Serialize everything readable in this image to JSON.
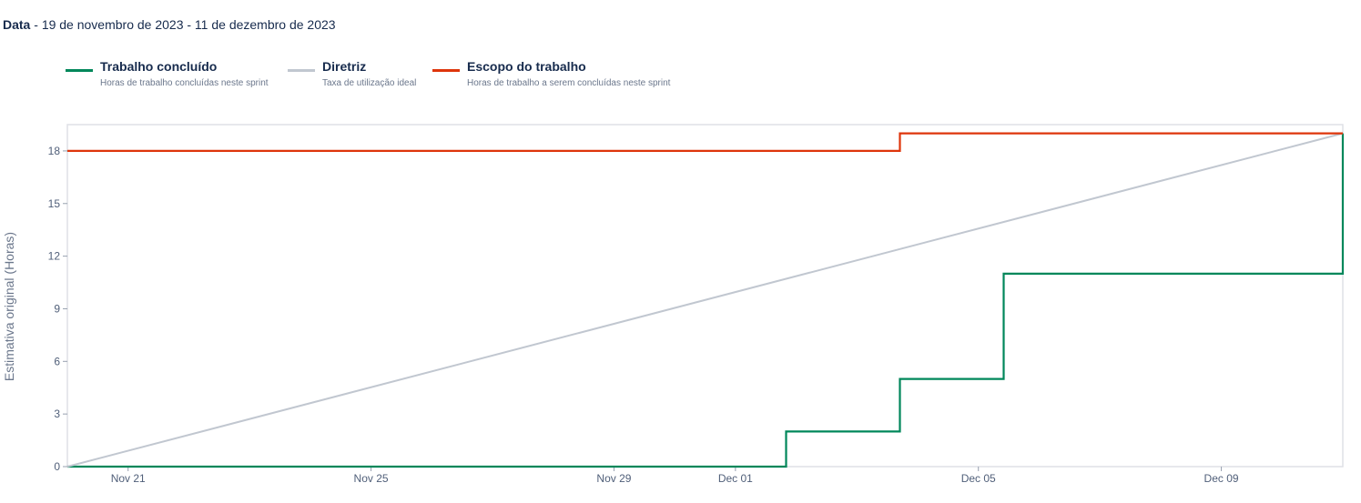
{
  "header": {
    "date_label": "Data",
    "date_range": "19 de novembro de 2023 - 11 de dezembro de 2023"
  },
  "legend": [
    {
      "title": "Trabalho concluído",
      "description": "Horas de trabalho concluídas neste sprint",
      "color": "#00875a"
    },
    {
      "title": "Diretriz",
      "description": "Taxa de utilização ideal",
      "color": "#c1c7d0"
    },
    {
      "title": "Escopo do trabalho",
      "description": "Horas de trabalho a serem concluídas neste sprint",
      "color": "#de350b"
    }
  ],
  "chart_data": {
    "type": "line",
    "title": "",
    "xlabel": "",
    "ylabel": "Estimativa original (Horas)",
    "xlim": [
      "2023-11-20",
      "2023-12-11"
    ],
    "ylim": [
      0,
      19.5
    ],
    "x_ticks": [
      {
        "date": "2023-11-21",
        "label": "Nov 21"
      },
      {
        "date": "2023-11-25",
        "label": "Nov 25"
      },
      {
        "date": "2023-11-29",
        "label": "Nov 29"
      },
      {
        "date": "2023-12-01",
        "label": "Dec 01"
      },
      {
        "date": "2023-12-05",
        "label": "Dec 05"
      },
      {
        "date": "2023-12-09",
        "label": "Dec 09"
      }
    ],
    "y_ticks": [
      0,
      3,
      6,
      9,
      12,
      15,
      18
    ],
    "grid": false,
    "legend_position": "top-left",
    "series": [
      {
        "name": "Trabalho concluído",
        "color": "#00875a",
        "step": true,
        "points": [
          [
            "2023-11-20",
            0
          ],
          [
            "2023-12-01T20:00",
            0
          ],
          [
            "2023-12-01T20:00",
            2
          ],
          [
            "2023-12-03T17:00",
            2
          ],
          [
            "2023-12-03T17:00",
            5
          ],
          [
            "2023-12-05T10:00",
            5
          ],
          [
            "2023-12-05T10:00",
            11
          ],
          [
            "2023-12-11",
            11
          ],
          [
            "2023-12-11",
            19
          ]
        ]
      },
      {
        "name": "Diretriz",
        "color": "#c1c7d0",
        "step": false,
        "points": [
          [
            "2023-11-20",
            0
          ],
          [
            "2023-12-11",
            19
          ]
        ]
      },
      {
        "name": "Escopo do trabalho",
        "color": "#de350b",
        "step": true,
        "points": [
          [
            "2023-11-20",
            18
          ],
          [
            "2023-12-03T17:00",
            18
          ],
          [
            "2023-12-03T17:00",
            19
          ],
          [
            "2023-12-11",
            19
          ]
        ]
      }
    ]
  }
}
